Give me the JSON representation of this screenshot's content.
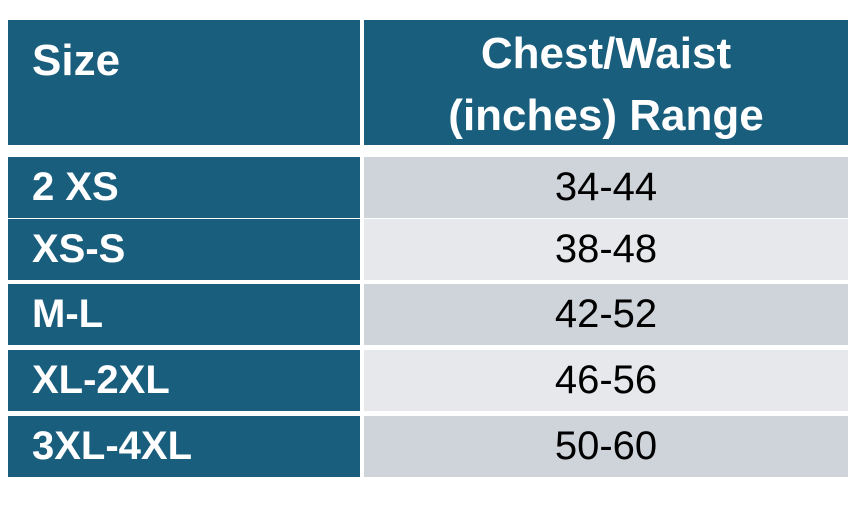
{
  "table": {
    "header": [
      "Size",
      "Chest/Waist (inches) Range"
    ],
    "rows": [
      [
        "2 XS",
        "34-44"
      ],
      [
        "XS-S",
        "38-48"
      ],
      [
        "M-L",
        "42-52"
      ],
      [
        "XL-2XL",
        "46-56"
      ],
      [
        "3XL-4XL",
        "50-60"
      ]
    ]
  }
}
